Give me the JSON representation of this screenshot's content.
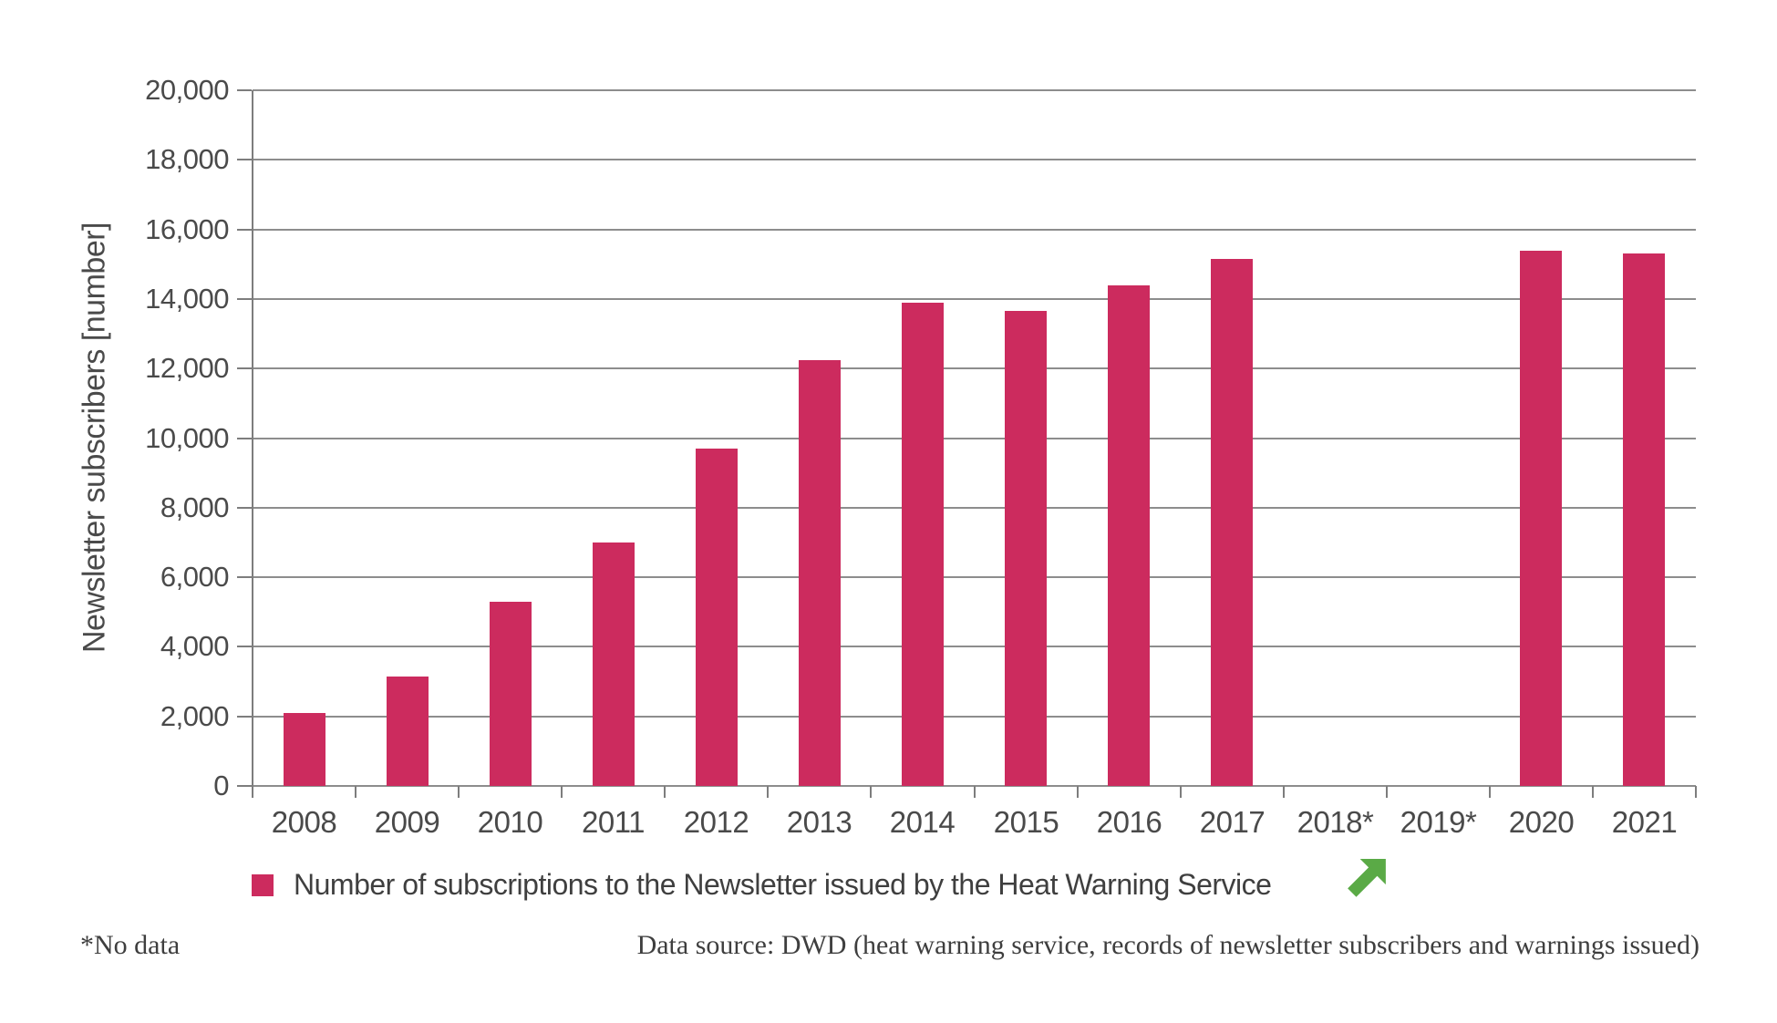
{
  "chart_data": {
    "type": "bar",
    "title": "",
    "xlabel": "",
    "ylabel": "Newsletter subscribers [number]",
    "ylim": [
      0,
      20000
    ],
    "ytick_step": 2000,
    "ytick_labels": [
      "20,000",
      "18,000",
      "16,000",
      "14,000",
      "12,000",
      "10,000",
      "8,000",
      "6,000",
      "4,000",
      "2,000",
      "0"
    ],
    "categories": [
      "2008",
      "2009",
      "2010",
      "2011",
      "2012",
      "2013",
      "2014",
      "2015",
      "2016",
      "2017",
      "2018*",
      "2019*",
      "2020",
      "2021"
    ],
    "values": [
      2100,
      3150,
      5300,
      7000,
      9700,
      12250,
      13900,
      13650,
      14400,
      15150,
      null,
      null,
      15400,
      15300
    ],
    "no_data_years": [
      "2018*",
      "2019*"
    ],
    "series_name": "Number of subscriptions to the Newsletter issued by the Heat Warning Service",
    "grid": "horizontal",
    "legend_position": "bottom"
  },
  "legend": {
    "label": "Number of subscriptions to the Newsletter issued by the Heat Warning Service",
    "trend_arrow_icon": "arrow-up-right",
    "trend_arrow_meaning": "rising trend"
  },
  "footnote": "*No data",
  "source": "Data source: DWD (heat warning service, records of newsletter subscribers and warnings issued)",
  "colors": {
    "bar": "#cc2b5e",
    "gridline": "#8d8d8d",
    "axis": "#7d7d7d",
    "arrow_green": "#5aaa46",
    "text": "#4a4a4a"
  }
}
